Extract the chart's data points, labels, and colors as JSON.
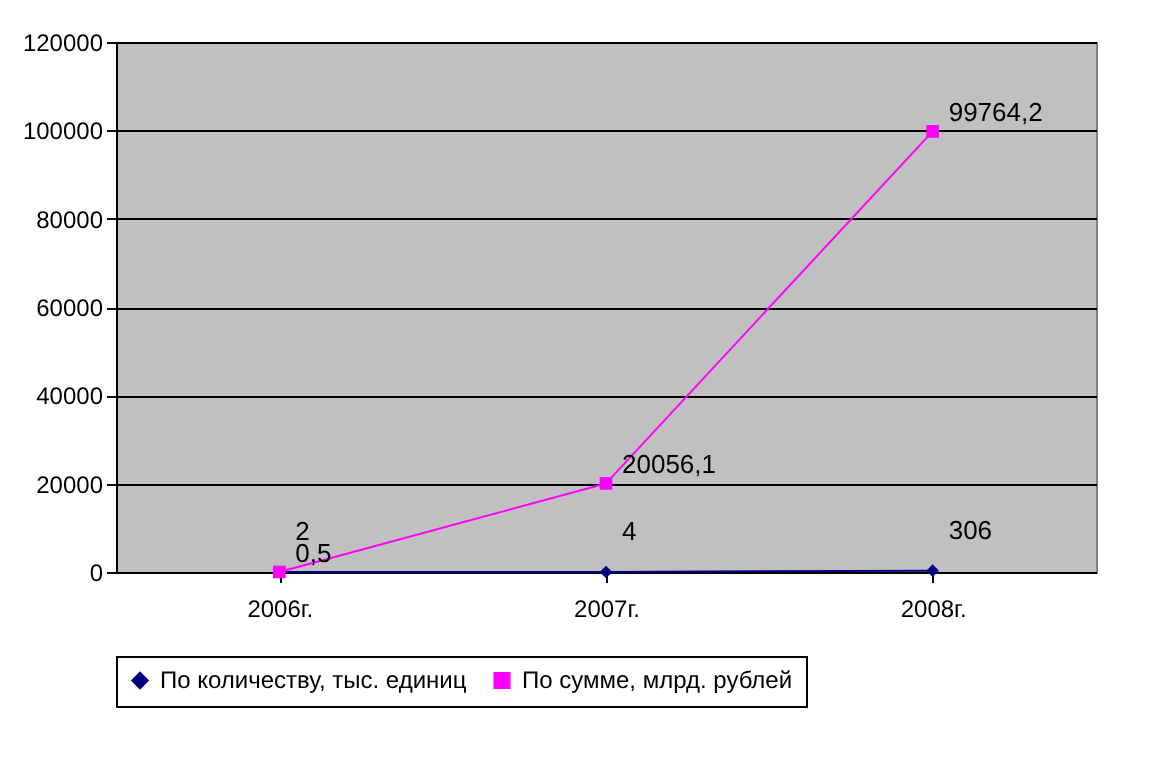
{
  "chart_data": {
    "type": "line",
    "categories": [
      "2006г.",
      "2007г.",
      "2008г."
    ],
    "ylim": [
      0,
      120000
    ],
    "yticks": [
      0,
      20000,
      40000,
      60000,
      80000,
      100000,
      120000
    ],
    "grid": "y",
    "legend": "bottom",
    "data_labels": true,
    "series": [
      {
        "name": "По количеству, тыс. единиц",
        "color": "#000080",
        "marker": "diamond",
        "values": [
          2,
          4,
          306
        ],
        "value_labels": [
          "2",
          "4",
          "306"
        ]
      },
      {
        "name": "По сумме, млрд. рублей",
        "color": "#ff00ff",
        "marker": "square",
        "values": [
          0.5,
          20056.1,
          99764.2
        ],
        "value_labels": [
          "0,5",
          "20056,1",
          "99764,2"
        ]
      }
    ]
  }
}
